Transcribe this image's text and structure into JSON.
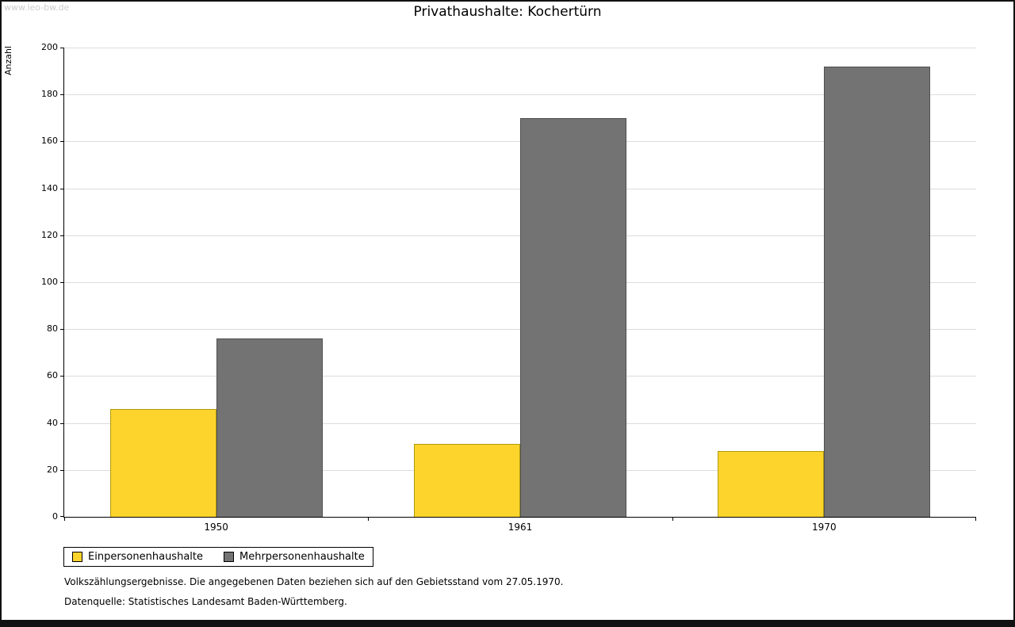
{
  "watermark": "www.leo-bw.de",
  "chart_data": {
    "type": "bar",
    "title": "Privathaushalte: Kochertürn",
    "ylabel": "Anzahl",
    "xlabel": "",
    "categories": [
      "1950",
      "1961",
      "1970"
    ],
    "series": [
      {
        "name": "Einpersonenhaushalte",
        "color": "#fcd42c",
        "border_color": "#b09a10",
        "values": [
          46,
          31,
          28
        ]
      },
      {
        "name": "Mehrpersonenhaushalte",
        "color": "#737373",
        "border_color": "#4f4f4f",
        "values": [
          76,
          170,
          192
        ]
      }
    ],
    "ylim": [
      0,
      200
    ],
    "ytick_step": 20,
    "grid": true,
    "legend_position": "bottom-left"
  },
  "footnotes": [
    "Volkszählungsergebnisse. Die angegebenen Daten beziehen sich auf den Gebietsstand vom 27.05.1970.",
    "Datenquelle: Statistisches Landesamt Baden-Württemberg."
  ]
}
